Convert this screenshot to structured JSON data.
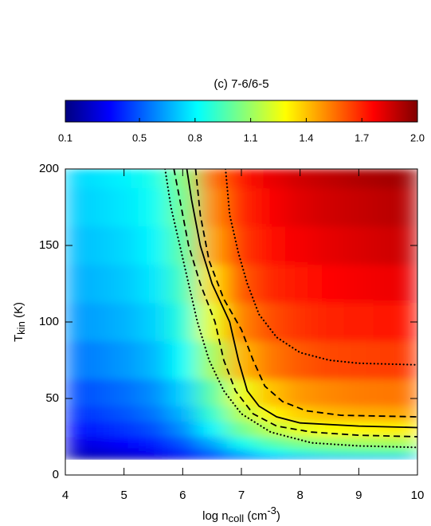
{
  "chart_data": {
    "type": "contour",
    "title": "(c) 7-6/6-5",
    "xlabel": [
      "log n",
      "coll",
      " (cm",
      "-3",
      ")"
    ],
    "ylabel": [
      "T",
      "kin",
      " (K)"
    ],
    "xlim": [
      4,
      10
    ],
    "xticks": [
      4,
      5,
      6,
      7,
      8,
      9,
      10
    ],
    "ylim": [
      0,
      200
    ],
    "yticks": [
      0,
      50,
      100,
      150,
      200
    ],
    "clim": [
      0.1,
      2
    ],
    "cbar_ticks": [
      0.1,
      0.5,
      0.8,
      1.1,
      1.4,
      1.7,
      {
        "value": 2,
        "label": "2.0"
      }
    ],
    "colormap": [
      "#000080",
      "#0000ff",
      "#0080ff",
      "#00ffff",
      "#80ff80",
      "#ffff00",
      "#ff8000",
      "#ff0000",
      "#800000"
    ],
    "x": [
      4,
      4.5,
      5,
      5.5,
      6,
      6.5,
      7,
      7.5,
      8,
      8.5,
      9,
      9.5,
      10
    ],
    "y": [
      10,
      15,
      20,
      30,
      40,
      50,
      75,
      100,
      125,
      150,
      175,
      200
    ],
    "z": [
      [
        0.15,
        0.17,
        0.19,
        0.22,
        0.28,
        0.36,
        0.46,
        0.55,
        0.6,
        0.63,
        0.65,
        0.66,
        0.67
      ],
      [
        0.23,
        0.25,
        0.28,
        0.32,
        0.41,
        0.54,
        0.7,
        0.82,
        0.89,
        0.93,
        0.95,
        0.96,
        0.97
      ],
      [
        0.28,
        0.3,
        0.34,
        0.39,
        0.49,
        0.65,
        0.84,
        0.97,
        1.05,
        1.09,
        1.11,
        1.12,
        1.13
      ],
      [
        0.36,
        0.39,
        0.43,
        0.48,
        0.6,
        0.8,
        1.02,
        1.16,
        1.24,
        1.28,
        1.3,
        1.31,
        1.32
      ],
      [
        0.42,
        0.45,
        0.49,
        0.55,
        0.67,
        0.9,
        1.15,
        1.3,
        1.38,
        1.42,
        1.44,
        1.45,
        1.46
      ],
      [
        0.47,
        0.5,
        0.54,
        0.6,
        0.73,
        0.98,
        1.25,
        1.4,
        1.48,
        1.51,
        1.53,
        1.54,
        1.55
      ],
      [
        0.55,
        0.58,
        0.62,
        0.68,
        0.82,
        1.12,
        1.42,
        1.54,
        1.6,
        1.63,
        1.64,
        1.65,
        1.66
      ],
      [
        0.61,
        0.64,
        0.67,
        0.73,
        0.88,
        1.25,
        1.52,
        1.62,
        1.67,
        1.7,
        1.71,
        1.72,
        1.73
      ],
      [
        0.65,
        0.68,
        0.71,
        0.77,
        0.93,
        1.35,
        1.6,
        1.69,
        1.73,
        1.76,
        1.78,
        1.79,
        1.8
      ],
      [
        0.68,
        0.71,
        0.74,
        0.8,
        0.98,
        1.45,
        1.66,
        1.74,
        1.78,
        1.81,
        1.83,
        1.85,
        1.86
      ],
      [
        0.71,
        0.74,
        0.77,
        0.83,
        1.02,
        1.5,
        1.69,
        1.77,
        1.82,
        1.85,
        1.87,
        1.89,
        1.9
      ],
      [
        0.73,
        0.76,
        0.79,
        0.85,
        1.05,
        1.55,
        1.72,
        1.8,
        1.85,
        1.88,
        1.91,
        1.93,
        1.95
      ]
    ],
    "contours": [
      {
        "style": "dotted",
        "x": [
          5.7,
          5.8,
          5.95,
          6.1,
          6.25,
          6.45,
          6.7,
          7.0,
          7.5,
          8.2,
          9,
          10
        ],
        "y": [
          200,
          175,
          150,
          125,
          100,
          75,
          55,
          40,
          28,
          21,
          19,
          18
        ]
      },
      {
        "style": "dashed",
        "x": [
          5.85,
          5.95,
          6.1,
          6.3,
          6.55,
          6.7,
          6.9,
          7.2,
          7.6,
          8.2,
          9,
          10
        ],
        "y": [
          200,
          180,
          150,
          125,
          100,
          75,
          55,
          40,
          32,
          28,
          26,
          25
        ]
      },
      {
        "style": "solid",
        "x": [
          6.07,
          6.15,
          6.3,
          6.5,
          6.8,
          6.95,
          7.1,
          7.3,
          7.6,
          8,
          9,
          10
        ],
        "y": [
          200,
          180,
          150,
          125,
          100,
          75,
          55,
          45,
          38,
          34,
          32,
          31
        ]
      },
      {
        "style": "dashed",
        "x": [
          6.22,
          6.3,
          6.45,
          6.7,
          7.0,
          7.2,
          7.4,
          7.7,
          8.1,
          8.7,
          10
        ],
        "y": [
          200,
          170,
          140,
          115,
          95,
          75,
          58,
          48,
          42,
          39,
          38
        ]
      },
      {
        "style": "dotted",
        "x": [
          6.73,
          6.8,
          6.95,
          7.1,
          7.3,
          7.6,
          8,
          8.5,
          9,
          10
        ],
        "y": [
          200,
          170,
          145,
          125,
          105,
          90,
          80,
          75,
          73,
          72
        ]
      }
    ]
  }
}
